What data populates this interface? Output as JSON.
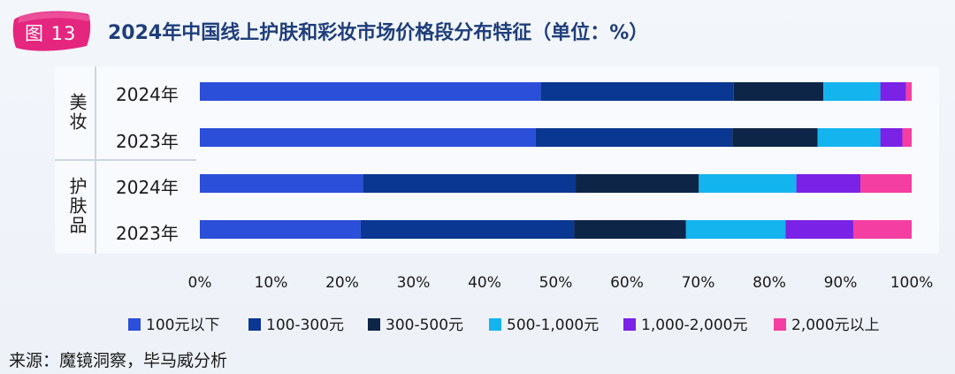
{
  "badge": {
    "text": "图 13"
  },
  "header": {
    "title": "2024年中国线上护肤和彩妆市场价格段分布特征（单位：%）"
  },
  "groups": [
    {
      "label": "美妆"
    },
    {
      "label": "护肤品"
    }
  ],
  "footer": {
    "source": "来源：魔镜洞察，毕马威分析"
  },
  "colors": {
    "background": "#f0f3f9",
    "title": "#1f3e7a",
    "badge": "#e5267f"
  },
  "chart_data": {
    "type": "bar",
    "orientation": "horizontal",
    "stacked": true,
    "title": "2024年中国线上护肤和彩妆市场价格段分布特征（单位：%）",
    "categories": [
      "2024年",
      "2023年",
      "2024年",
      "2023年"
    ],
    "category_groups": [
      "美妆",
      "美妆",
      "护肤品",
      "护肤品"
    ],
    "xlim": [
      0,
      100
    ],
    "xticks": [
      "0%",
      "10%",
      "20%",
      "30%",
      "40%",
      "50%",
      "60%",
      "70%",
      "80%",
      "90%",
      "100%"
    ],
    "legend_position": "bottom",
    "grid": false,
    "series": [
      {
        "name": "100元以下",
        "color": "#2b4fd9",
        "values": [
          47.9,
          47.2,
          22.9,
          22.6
        ]
      },
      {
        "name": "100-300元",
        "color": "#0a3791",
        "values": [
          27.1,
          27.6,
          29.9,
          30.0
        ]
      },
      {
        "name": "300-500元",
        "color": "#0d2547",
        "values": [
          12.6,
          12.0,
          17.3,
          15.7
        ]
      },
      {
        "name": "500-1,000元",
        "color": "#14b4ef",
        "values": [
          8.0,
          8.8,
          13.7,
          14.0
        ]
      },
      {
        "name": "1,000-2,000元",
        "color": "#7a22e6",
        "values": [
          3.6,
          3.1,
          9.0,
          9.5
        ]
      },
      {
        "name": "2,000元以上",
        "color": "#f53ea2",
        "values": [
          0.8,
          1.3,
          7.2,
          8.2
        ]
      }
    ]
  }
}
